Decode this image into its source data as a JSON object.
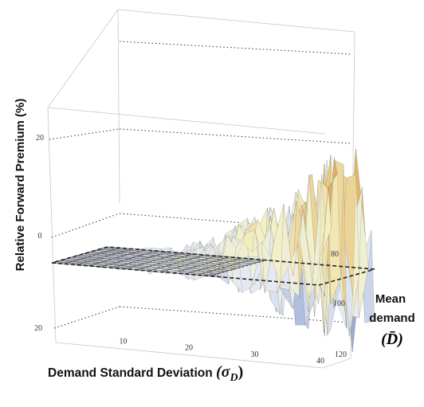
{
  "chart_data": {
    "type": "surface3d",
    "zlabel": "Relative Forward Premium (%)",
    "xlabel_text": "Demand Standard Deviation ",
    "xlabel_symbol": "(σ",
    "xlabel_sub": "D",
    "xlabel_close": ")",
    "ylabel_line1": "Mean",
    "ylabel_line2": "demand",
    "ylabel_symbol": "(D̄)",
    "x_ticks": [
      "10",
      "20",
      "30",
      "40"
    ],
    "y_ticks": [
      "80",
      "100",
      "120"
    ],
    "z_ticks": [
      "20",
      "0",
      "20"
    ],
    "x_range": [
      0,
      40
    ],
    "y_range": [
      70,
      120
    ],
    "z_range": [
      -20,
      30
    ],
    "reference_plane_z": 0,
    "surface_profile": {
      "sigma_D": [
        0,
        5,
        10,
        15,
        20,
        25,
        30,
        35,
        40
      ],
      "max_premium_pct": [
        1,
        2,
        3,
        6,
        10,
        15,
        22,
        28,
        30
      ],
      "min_premium_pct": [
        -1,
        -2,
        -4,
        -6,
        -10,
        -13,
        -17,
        -19,
        -20
      ]
    },
    "colors": {
      "low": "#3a4a7a",
      "mid_low": "#dfe6f3",
      "mid": "#f3f0c0",
      "mid_high": "#e0b060",
      "high": "#c02020"
    }
  }
}
